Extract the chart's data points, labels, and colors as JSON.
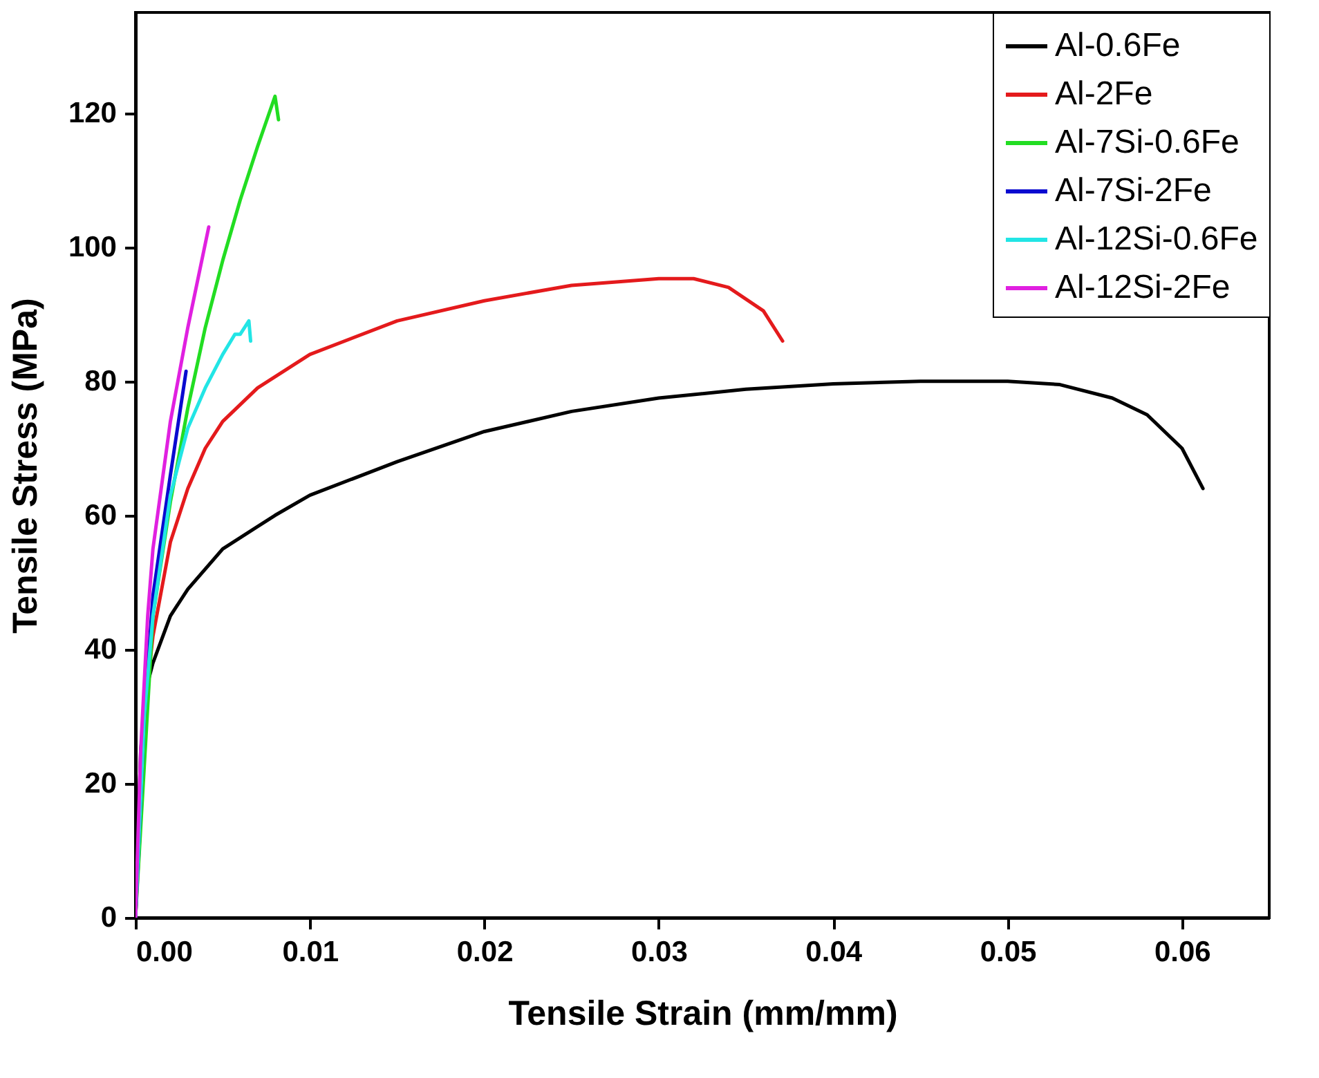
{
  "chart_data": {
    "type": "line",
    "xlabel": "Tensile Strain (mm/mm)",
    "ylabel": "Tensile Stress (MPa)",
    "xlim": [
      0,
      0.065
    ],
    "ylim": [
      0,
      135
    ],
    "xticks": [
      {
        "value": 0,
        "label": "0.00"
      },
      {
        "value": 0.01,
        "label": "0.01"
      },
      {
        "value": 0.02,
        "label": "0.02"
      },
      {
        "value": 0.03,
        "label": "0.03"
      },
      {
        "value": 0.04,
        "label": "0.04"
      },
      {
        "value": 0.05,
        "label": "0.05"
      },
      {
        "value": 0.06,
        "label": "0.06"
      }
    ],
    "yticks": [
      0,
      20,
      40,
      60,
      80,
      100,
      120
    ],
    "grid": false,
    "legend": "top right",
    "line_style": "solid",
    "marker": "none",
    "series": [
      {
        "name": "Al-0.6Fe",
        "color": "#000000",
        "x": [
          0,
          0.0003,
          0.0007,
          0.001,
          0.002,
          0.003,
          0.005,
          0.008,
          0.01,
          0.015,
          0.02,
          0.025,
          0.03,
          0.035,
          0.04,
          0.045,
          0.05,
          0.053,
          0.056,
          0.058,
          0.06,
          0.0612
        ],
        "values": [
          0,
          25,
          35,
          38,
          45,
          49,
          55,
          60,
          63,
          68,
          72.5,
          75.5,
          77.5,
          78.8,
          79.6,
          80,
          80,
          79.5,
          77.5,
          75,
          70,
          64
        ]
      },
      {
        "name": "Al-2Fe",
        "color": "#e41a1c",
        "x": [
          0,
          0.0007,
          0.001,
          0.002,
          0.003,
          0.004,
          0.005,
          0.007,
          0.01,
          0.015,
          0.02,
          0.025,
          0.03,
          0.032,
          0.034,
          0.036,
          0.0371
        ],
        "values": [
          0,
          35,
          42,
          56,
          64,
          70,
          74,
          79,
          84,
          89,
          92,
          94.3,
          95.3,
          95.3,
          94,
          90.5,
          86
        ]
      },
      {
        "name": "Al-7Si-0.6Fe",
        "color": "#22dd22",
        "x": [
          0,
          0.001,
          0.002,
          0.003,
          0.004,
          0.005,
          0.006,
          0.007,
          0.008,
          0.0082
        ],
        "values": [
          0,
          45,
          62,
          76,
          88,
          98,
          107,
          115,
          122.5,
          119
        ]
      },
      {
        "name": "Al-7Si-2Fe",
        "color": "#0a0ad0",
        "x": [
          0,
          0.0005,
          0.001,
          0.002,
          0.0029
        ],
        "values": [
          0,
          30,
          48,
          66,
          81.5
        ]
      },
      {
        "name": "Al-12Si-0.6Fe",
        "color": "#22e5e5",
        "x": [
          0,
          0.0005,
          0.001,
          0.002,
          0.003,
          0.004,
          0.005,
          0.0057,
          0.006,
          0.0065,
          0.0066
        ],
        "values": [
          0,
          30,
          45,
          63,
          73,
          79,
          84,
          87,
          87,
          89,
          86
        ]
      },
      {
        "name": "Al-12Si-2Fe",
        "color": "#e020e0",
        "x": [
          0,
          0.0003,
          0.0007,
          0.001,
          0.002,
          0.003,
          0.0042
        ],
        "values": [
          0,
          25,
          45,
          55,
          74,
          88,
          103
        ]
      }
    ]
  }
}
